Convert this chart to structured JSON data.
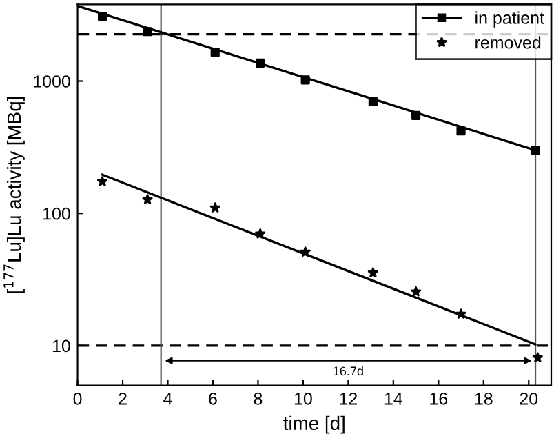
{
  "chart_data": {
    "type": "scatter",
    "xlabel": "time [d]",
    "ylabel": "[$^{177}$Lu]Lu activity [MBq]",
    "log": "y",
    "xlim": [
      0,
      21
    ],
    "ylim": [
      5,
      3800
    ],
    "xticks": [
      0,
      2,
      4,
      6,
      8,
      10,
      12,
      14,
      16,
      18,
      20
    ],
    "yticks": [
      10,
      100,
      1000
    ],
    "grid": false,
    "legend": "top right",
    "series": [
      {
        "name": "in patient",
        "marker": "square",
        "color": "#000000",
        "x": [
          1.1,
          3.1,
          6.1,
          8.1,
          10.1,
          13.1,
          15.0,
          17.0,
          20.3
        ],
        "values": [
          3090,
          2370,
          1650,
          1370,
          1020,
          700,
          550,
          420,
          300
        ]
      },
      {
        "type": "line",
        "color": "#000000",
        "x": [
          0,
          20.3
        ],
        "values": [
          3700,
          300
        ]
      },
      {
        "type": "line",
        "color": "#000000",
        "x": [
          1.1,
          20.3
        ],
        "values": [
          196,
          10.2
        ]
      },
      {
        "name": "removed",
        "marker": "star",
        "color": "#000000",
        "x": [
          1.1,
          3.1,
          6.1,
          8.1,
          10.1,
          13.1,
          15.0,
          17.0,
          20.4
        ],
        "values": [
          174,
          127,
          110,
          70,
          51,
          35.5,
          25.5,
          17.3,
          8.1
        ]
      }
    ],
    "ref_lines": [
      {
        "axis": "y",
        "value": 2260,
        "line_style": "dashed",
        "color": "#000000"
      },
      {
        "axis": "y",
        "value": 10,
        "line_style": "dashed",
        "color": "#000000"
      },
      {
        "axis": "x",
        "value": 3.7,
        "line_style": "solid",
        "color": "#555555"
      },
      {
        "axis": "x",
        "value": 20.3,
        "line_style": "solid",
        "color": "#555555"
      }
    ],
    "annotations": [
      "16.7d"
    ]
  }
}
